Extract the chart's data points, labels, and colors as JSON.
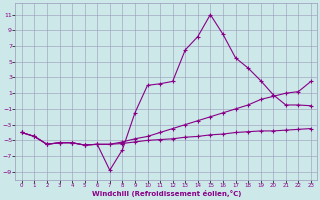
{
  "xlabel": "Windchill (Refroidissement éolien,°C)",
  "background_color": "#cce8e8",
  "grid_color": "#9999bb",
  "line_color": "#880088",
  "x_ticks": [
    0,
    1,
    2,
    3,
    4,
    5,
    6,
    7,
    8,
    9,
    10,
    11,
    12,
    13,
    14,
    15,
    16,
    17,
    18,
    19,
    20,
    21,
    22,
    23
  ],
  "y_ticks": [
    -9,
    -7,
    -5,
    -3,
    -1,
    1,
    3,
    5,
    7,
    9,
    11
  ],
  "xlim": [
    -0.5,
    23.5
  ],
  "ylim": [
    -10.0,
    12.5
  ],
  "line1_x": [
    0,
    1,
    2,
    3,
    4,
    5,
    6,
    7,
    8,
    9,
    10,
    11,
    12,
    13,
    14,
    15,
    16,
    17,
    18,
    19,
    20,
    21,
    22,
    23
  ],
  "line1_y": [
    -4.0,
    -4.5,
    -5.5,
    -5.3,
    -5.3,
    -5.6,
    -5.5,
    -8.8,
    -6.2,
    -1.5,
    2.0,
    2.2,
    2.5,
    6.5,
    8.2,
    11.0,
    8.5,
    5.5,
    4.2,
    2.6,
    0.8,
    -0.5,
    -0.5,
    -0.6
  ],
  "line2_x": [
    0,
    1,
    2,
    3,
    4,
    5,
    6,
    7,
    8,
    9,
    10,
    11,
    12,
    13,
    14,
    15,
    16,
    17,
    18,
    19,
    20,
    21,
    22,
    23
  ],
  "line2_y": [
    -4.0,
    -4.5,
    -5.5,
    -5.3,
    -5.3,
    -5.6,
    -5.5,
    -5.5,
    -5.2,
    -4.8,
    -4.5,
    -4.0,
    -3.5,
    -3.0,
    -2.5,
    -2.0,
    -1.5,
    -1.0,
    -0.5,
    0.2,
    0.6,
    1.0,
    1.2,
    2.5
  ],
  "line3_x": [
    0,
    1,
    2,
    3,
    4,
    5,
    6,
    7,
    8,
    9,
    10,
    11,
    12,
    13,
    14,
    15,
    16,
    17,
    18,
    19,
    20,
    21,
    22,
    23
  ],
  "line3_y": [
    -4.0,
    -4.5,
    -5.5,
    -5.3,
    -5.3,
    -5.6,
    -5.5,
    -5.5,
    -5.4,
    -5.2,
    -5.0,
    -4.9,
    -4.8,
    -4.6,
    -4.5,
    -4.3,
    -4.2,
    -4.0,
    -3.9,
    -3.8,
    -3.8,
    -3.7,
    -3.6,
    -3.5
  ]
}
